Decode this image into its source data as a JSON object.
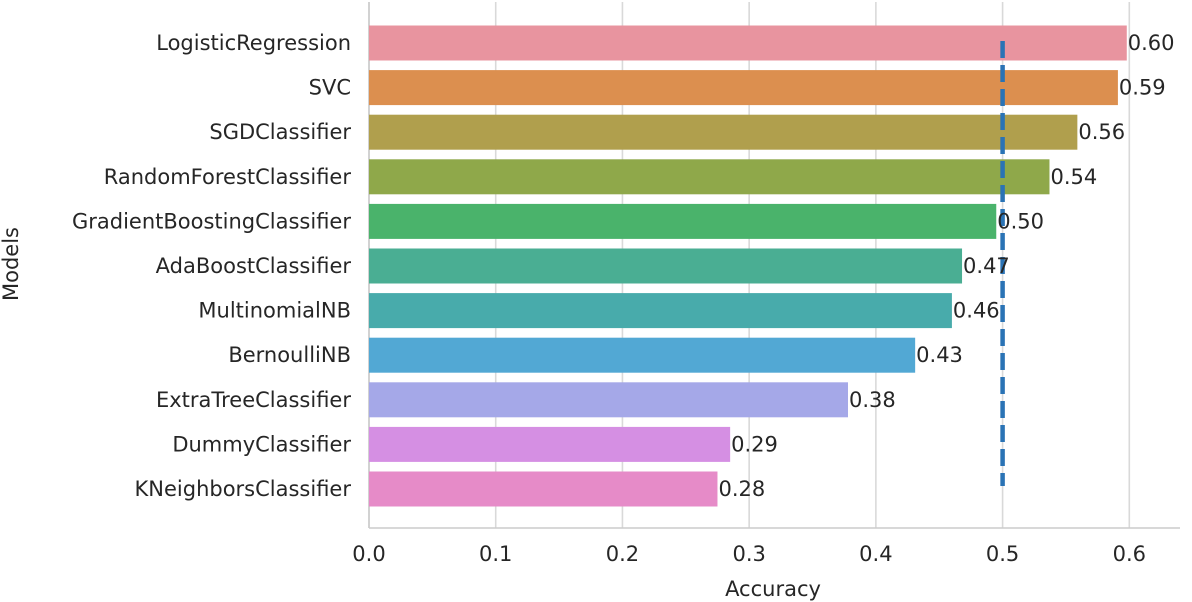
{
  "chart_data": {
    "type": "bar",
    "orientation": "horizontal",
    "title": "",
    "xlabel": "Accuracy",
    "ylabel": "Models",
    "xlim": [
      0.0,
      0.64
    ],
    "grid": true,
    "categories": [
      "LogisticRegression",
      "SVC",
      "SGDClassifier",
      "RandomForestClassifier",
      "GradientBoostingClassifier",
      "AdaBoostClassifier",
      "MultinomialNB",
      "BernoulliNB",
      "ExtraTreeClassifier",
      "DummyClassifier",
      "KNeighborsClassifier"
    ],
    "values": [
      0.598,
      0.591,
      0.559,
      0.537,
      0.495,
      0.468,
      0.46,
      0.431,
      0.378,
      0.285,
      0.275
    ],
    "data_labels": [
      "0.60",
      "0.59",
      "0.56",
      "0.54",
      "0.50",
      "0.47",
      "0.46",
      "0.43",
      "0.38",
      "0.29",
      "0.28"
    ],
    "colors": [
      "#e8949f",
      "#dc8f4f",
      "#b09f4d",
      "#8fa84a",
      "#4ab36b",
      "#4aae93",
      "#48abab",
      "#52a8d4",
      "#a5a8e8",
      "#d58fe3",
      "#e68bc8"
    ],
    "xticks": [
      0.0,
      0.1,
      0.2,
      0.3,
      0.4,
      0.5,
      0.6
    ],
    "xtick_labels": [
      "0.0",
      "0.1",
      "0.2",
      "0.3",
      "0.4",
      "0.5",
      "0.6"
    ],
    "reference_line": {
      "x": 0.5,
      "color": "#2a73b5",
      "style": "dashed"
    }
  }
}
